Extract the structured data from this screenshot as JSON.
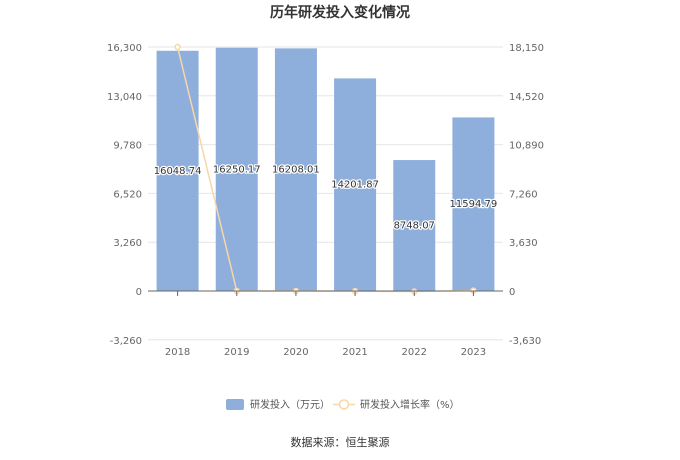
{
  "chart_data": {
    "type": "bar",
    "title": "历年研发投入变化情况",
    "categories": [
      "2018",
      "2019",
      "2020",
      "2021",
      "2022",
      "2023"
    ],
    "series": [
      {
        "name": "研发投入（万元）",
        "type": "bar",
        "axis": "left",
        "color": "#8eaedb",
        "values": [
          16048.74,
          16250.17,
          16208.01,
          14201.87,
          8748.07,
          11594.79
        ],
        "labels": [
          "16048.74",
          "16250.17",
          "16208.01",
          "14201.87",
          "8748.07",
          "11594.79"
        ]
      },
      {
        "name": "研发投入增长率（%）",
        "type": "line",
        "axis": "right",
        "color": "#f7d7a6",
        "values": [
          18150,
          1.26,
          -0.26,
          -12.38,
          -38.4,
          32.54
        ]
      }
    ],
    "y_left": {
      "ylim": [
        -3260,
        16300
      ],
      "ticks": [
        "-3,260",
        "0",
        "3,260",
        "6,520",
        "9,780",
        "13,040",
        "16,300"
      ]
    },
    "y_right": {
      "ylim": [
        -3630,
        18150
      ],
      "ticks": [
        "-3,630",
        "0",
        "3,630",
        "7,260",
        "10,890",
        "14,520",
        "18,150"
      ]
    },
    "grid": true,
    "legend_position": "bottom"
  },
  "source_text": "数据来源：恒生聚源"
}
